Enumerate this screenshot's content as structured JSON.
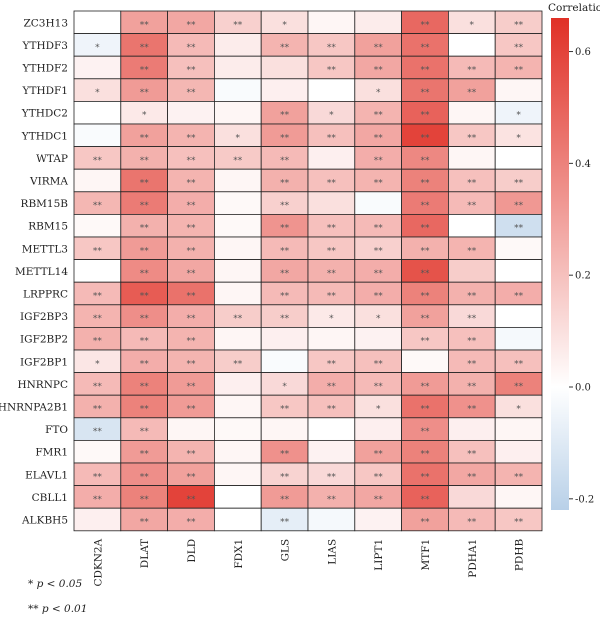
{
  "chart_data": {
    "type": "heatmap",
    "rows": [
      "ZC3H13",
      "YTHDF3",
      "YTHDF2",
      "YTHDF1",
      "YTHDC2",
      "YTHDC1",
      "WTAP",
      "VIRMA",
      "RBM15B",
      "RBM15",
      "METTL3",
      "METTL14",
      "LRPPRC",
      "IGF2BP3",
      "IGF2BP2",
      "IGF2BP1",
      "HNRNPC",
      "HNRNPA2B1",
      "FTO",
      "FMR1",
      "ELAVL1",
      "CBLL1",
      "ALKBH5"
    ],
    "columns": [
      "CDKN2A",
      "DLAT",
      "DLD",
      "FDX1",
      "GLS",
      "LIAS",
      "LIPT1",
      "MTF1",
      "PDHA1",
      "PDHB"
    ],
    "values": [
      [
        0.0,
        0.3,
        0.28,
        0.15,
        0.1,
        0.03,
        0.06,
        0.48,
        0.1,
        0.16
      ],
      [
        -0.05,
        0.44,
        0.22,
        0.06,
        0.24,
        0.18,
        0.3,
        0.45,
        0.0,
        0.18
      ],
      [
        0.04,
        0.42,
        0.2,
        0.06,
        0.1,
        0.18,
        0.28,
        0.45,
        0.22,
        0.24
      ],
      [
        0.1,
        0.32,
        0.23,
        -0.02,
        0.05,
        0.0,
        0.1,
        0.44,
        0.3,
        0.03
      ],
      [
        0.0,
        0.07,
        0.04,
        0.03,
        0.3,
        0.12,
        0.24,
        0.5,
        0.03,
        -0.05
      ],
      [
        -0.02,
        0.3,
        0.24,
        0.1,
        0.32,
        0.2,
        0.28,
        0.6,
        0.18,
        0.09
      ],
      [
        0.18,
        0.25,
        0.2,
        0.17,
        0.22,
        0.05,
        0.26,
        0.38,
        0.03,
        0.0
      ],
      [
        0.03,
        0.44,
        0.24,
        0.03,
        0.25,
        0.2,
        0.24,
        0.4,
        0.2,
        0.16
      ],
      [
        0.23,
        0.42,
        0.26,
        0.02,
        0.15,
        0.1,
        -0.02,
        0.42,
        0.22,
        0.33
      ],
      [
        0.02,
        0.25,
        0.24,
        0.02,
        0.34,
        0.2,
        0.22,
        0.48,
        0.0,
        -0.15
      ],
      [
        0.18,
        0.32,
        0.25,
        0.03,
        0.22,
        0.18,
        0.15,
        0.25,
        0.24,
        0.02
      ],
      [
        0.0,
        0.37,
        0.28,
        0.03,
        0.28,
        0.25,
        0.26,
        0.55,
        0.16,
        0.0
      ],
      [
        0.22,
        0.52,
        0.45,
        0.03,
        0.22,
        0.22,
        0.26,
        0.4,
        0.25,
        0.26
      ],
      [
        0.24,
        0.36,
        0.26,
        0.16,
        0.16,
        0.07,
        0.1,
        0.3,
        0.12,
        0.0
      ],
      [
        0.25,
        0.22,
        0.24,
        0.03,
        0.05,
        0.03,
        0.04,
        0.18,
        0.2,
        -0.03
      ],
      [
        0.08,
        0.26,
        0.24,
        0.16,
        -0.02,
        0.18,
        0.2,
        0.02,
        0.22,
        0.2
      ],
      [
        0.22,
        0.4,
        0.32,
        0.05,
        0.12,
        0.26,
        0.22,
        0.32,
        0.25,
        0.4
      ],
      [
        0.25,
        0.4,
        0.32,
        0.03,
        0.18,
        0.2,
        0.1,
        0.45,
        0.35,
        0.1
      ],
      [
        -0.12,
        0.22,
        0.03,
        0.02,
        0.03,
        0.0,
        0.05,
        0.36,
        0.05,
        0.03
      ],
      [
        0.02,
        0.32,
        0.24,
        0.03,
        0.35,
        0.04,
        0.3,
        0.4,
        0.2,
        0.05
      ],
      [
        0.22,
        0.36,
        0.3,
        0.03,
        0.14,
        0.12,
        0.18,
        0.45,
        0.28,
        0.24
      ],
      [
        0.26,
        0.4,
        0.6,
        0.0,
        0.32,
        0.25,
        0.28,
        0.5,
        0.12,
        0.03
      ],
      [
        0.05,
        0.28,
        0.26,
        0.0,
        -0.08,
        -0.03,
        0.04,
        0.3,
        0.22,
        0.18
      ]
    ],
    "significance": [
      [
        "",
        "**",
        "**",
        "**",
        "*",
        "",
        "",
        "**",
        "*",
        "**"
      ],
      [
        "*",
        "**",
        "**",
        "",
        "**",
        "**",
        "**",
        "**",
        "",
        "**"
      ],
      [
        "",
        "**",
        "**",
        "",
        "",
        "**",
        "**",
        "**",
        "**",
        "**"
      ],
      [
        "*",
        "**",
        "**",
        "",
        "",
        "",
        "*",
        "**",
        "**",
        ""
      ],
      [
        "",
        "*",
        "",
        "",
        "**",
        "*",
        "**",
        "**",
        "",
        "*"
      ],
      [
        "",
        "**",
        "**",
        "*",
        "**",
        "**",
        "**",
        "**",
        "**",
        "*"
      ],
      [
        "**",
        "**",
        "**",
        "**",
        "**",
        "",
        "**",
        "**",
        "",
        ""
      ],
      [
        "",
        "**",
        "**",
        "",
        "**",
        "**",
        "**",
        "**",
        "**",
        "**"
      ],
      [
        "**",
        "**",
        "**",
        "",
        "**",
        "",
        "",
        "**",
        "**",
        "**"
      ],
      [
        "",
        "**",
        "**",
        "",
        "**",
        "**",
        "**",
        "**",
        "",
        "**"
      ],
      [
        "**",
        "**",
        "**",
        "",
        "**",
        "**",
        "**",
        "**",
        "**",
        ""
      ],
      [
        "",
        "**",
        "**",
        "",
        "**",
        "**",
        "**",
        "**",
        "",
        ""
      ],
      [
        "**",
        "**",
        "**",
        "",
        "**",
        "**",
        "**",
        "**",
        "**",
        "**"
      ],
      [
        "**",
        "**",
        "**",
        "**",
        "**",
        "*",
        "*",
        "**",
        "**",
        ""
      ],
      [
        "**",
        "**",
        "**",
        "",
        "",
        "",
        "",
        "**",
        "**",
        ""
      ],
      [
        "*",
        "**",
        "**",
        "**",
        "",
        "**",
        "**",
        "",
        "**",
        "**"
      ],
      [
        "**",
        "**",
        "**",
        "",
        "*",
        "**",
        "**",
        "**",
        "**",
        "**"
      ],
      [
        "**",
        "**",
        "**",
        "",
        "**",
        "**",
        "*",
        "**",
        "**",
        "*"
      ],
      [
        "**",
        "**",
        "",
        "",
        "",
        "",
        "",
        "**",
        "",
        ""
      ],
      [
        "",
        "**",
        "**",
        "",
        "**",
        "",
        "**",
        "**",
        "**",
        ""
      ],
      [
        "**",
        "**",
        "**",
        "",
        "**",
        "**",
        "**",
        "**",
        "**",
        "**"
      ],
      [
        "**",
        "**",
        "**",
        "",
        "**",
        "**",
        "**",
        "**",
        "",
        ""
      ],
      [
        "",
        "**",
        "**",
        "",
        "**",
        "",
        "",
        "**",
        "**",
        "**"
      ]
    ],
    "colorbar": {
      "title": "Correlation",
      "range": [
        -0.22,
        0.66
      ],
      "ticks": [
        -0.2,
        0,
        0.2,
        0.4,
        0.6
      ],
      "tick_labels": [
        "-0.2",
        "0.0",
        "0.2",
        "0.4",
        "0.6"
      ],
      "colors": {
        "negative": "#b8d0e8",
        "zero": "#ffffff",
        "positive": "#e03026"
      }
    }
  },
  "legend_notes": {
    "single_star_prefix": "*",
    "single_star_text": "p < 0.05",
    "double_star_prefix": "**",
    "double_star_text": "p < 0.01"
  }
}
